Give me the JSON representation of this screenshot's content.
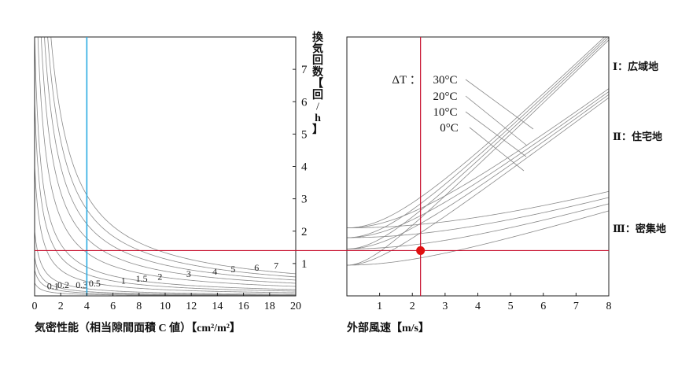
{
  "chart_data": [
    {
      "type": "line",
      "panel": "left",
      "xlabel": "気密性能（相当隙間面積 C 値）【cm²/m²】",
      "ylabel_chars": [
        "換",
        "気",
        "回",
        "数",
        "【",
        "回",
        "/",
        "h",
        "】"
      ],
      "x_ticks": [
        "0",
        "2",
        "4",
        "6",
        "8",
        "10",
        "12",
        "14",
        "16",
        "18",
        "20"
      ],
      "y_ticks": [
        "1",
        "2",
        "3",
        "4",
        "5",
        "6",
        "7"
      ],
      "xlim": [
        0,
        20
      ],
      "ylim": [
        0,
        8
      ],
      "grid": false,
      "series_labels": [
        "0.1",
        "0.2",
        "0.3",
        "0.5",
        "1",
        "1.5",
        "2",
        "3",
        "4",
        "5",
        "6",
        "7"
      ],
      "series_k": [
        0.2,
        0.4,
        0.6,
        1.0,
        2.0,
        3.0,
        4.0,
        6.0,
        8.0,
        10.0,
        12.0,
        14.0
      ],
      "marker_line_x": 4,
      "marker_line_color": "#29abe2"
    },
    {
      "type": "line",
      "panel": "right",
      "xlabel": "外部風速【m/s】",
      "x_ticks": [
        "1",
        "2",
        "3",
        "4",
        "5",
        "6",
        "7",
        "8"
      ],
      "xlim": [
        0,
        8
      ],
      "ylim": [
        0,
        8
      ],
      "grid": false,
      "dt_title": "ΔT ：",
      "dt_labels": [
        "30°C",
        "20°C",
        "10°C",
        "0°C"
      ],
      "region_labels": [
        "Ⅰ：広域地",
        "Ⅱ：住宅地",
        "Ⅲ：密集地"
      ],
      "groups": [
        {
          "region": "Ⅰ：広域地",
          "base": [
            2.1,
            1.8,
            1.45,
            0.95
          ],
          "end": 7.85
        },
        {
          "region": "Ⅱ：住宅地",
          "base": [
            2.1,
            1.8,
            1.45,
            0.95
          ],
          "end": 6.05
        },
        {
          "region": "Ⅲ：密集地",
          "base": [
            2.1,
            1.8,
            1.45,
            0.95
          ],
          "end": 2.45
        }
      ],
      "point": {
        "x": 2.25,
        "y": 1.4
      },
      "point_color": "#e01010"
    }
  ],
  "reference_line": {
    "y": 1.4,
    "color": "#c8102e"
  }
}
